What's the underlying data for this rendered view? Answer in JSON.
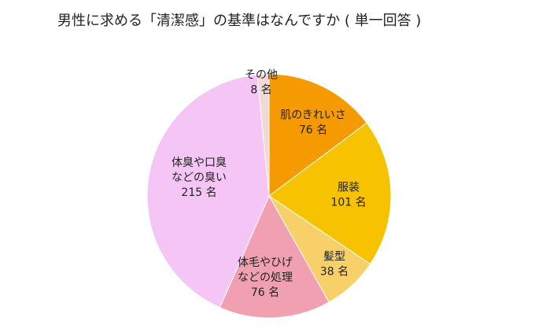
{
  "title": "男性に求める「清潔感」の基準はなんですか ( 単一回答 )",
  "chart_data": {
    "type": "pie",
    "title": "男性に求める「清潔感」の基準はなんですか ( 単一回答 )",
    "unit": "名",
    "start_angle_deg": 0,
    "direction": "clockwise",
    "slices": [
      {
        "label_lines": [
          "肌のきれいさ"
        ],
        "value": 76,
        "value_label": "76 名",
        "color": "#f59a00"
      },
      {
        "label_lines": [
          "服装"
        ],
        "value": 101,
        "value_label": "101 名",
        "color": "#f7c200"
      },
      {
        "label_lines": [
          "髪型"
        ],
        "value": 38,
        "value_label": "38 名",
        "color": "#f8d06a"
      },
      {
        "label_lines": [
          "体毛やひげ",
          "などの処理"
        ],
        "value": 76,
        "value_label": "76 名",
        "color": "#f0a0b0"
      },
      {
        "label_lines": [
          "体臭や口臭",
          "などの臭い"
        ],
        "value": 215,
        "value_label": "215 名",
        "color": "#f5c6f5"
      },
      {
        "label_lines": [
          "その他"
        ],
        "value": 8,
        "value_label": "8 名",
        "color": "#f3d8d8"
      }
    ]
  }
}
